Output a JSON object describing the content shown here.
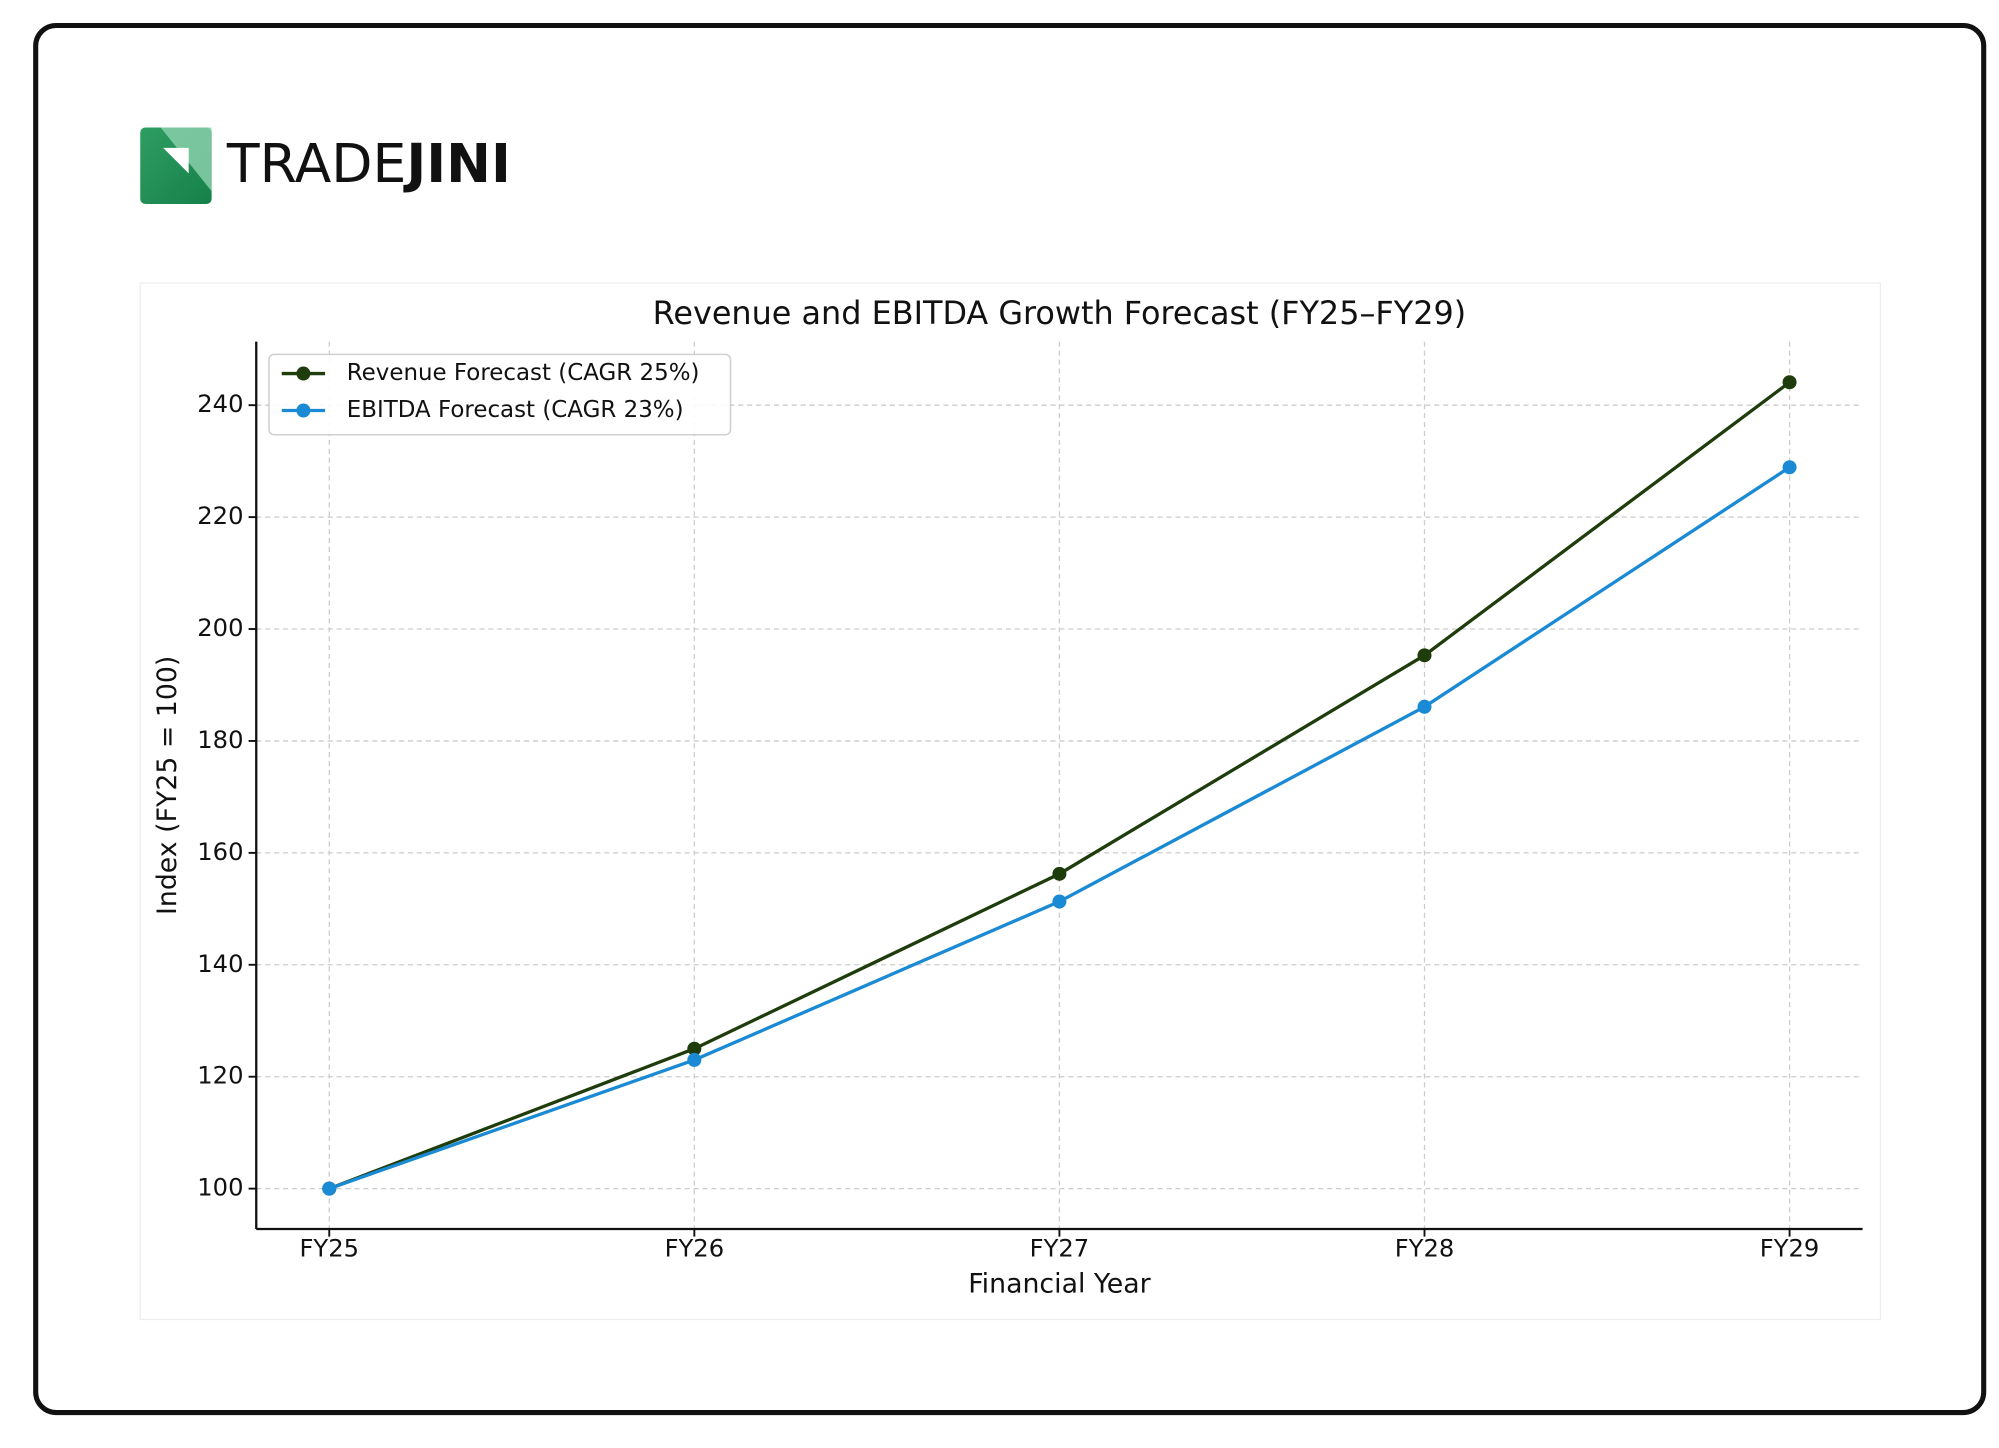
{
  "brand": {
    "name_light": "TRADE",
    "name_bold": "JINI"
  },
  "chart_data": {
    "type": "line",
    "title": "Revenue and EBITDA Growth Forecast (FY25–FY29)",
    "x_label": "Financial Year",
    "y_label": "Index (FY25 = 100)",
    "categories": [
      "FY25",
      "FY26",
      "FY27",
      "FY28",
      "FY29"
    ],
    "series": [
      {
        "name": "Revenue Forecast (CAGR 25%)",
        "color": "#1f3d0c",
        "values": [
          100,
          125,
          156.25,
          195.3,
          244.1
        ]
      },
      {
        "name": "EBITDA Forecast (CAGR 23%)",
        "color": "#1a8ad4",
        "values": [
          100,
          123,
          151.3,
          186.1,
          228.9
        ]
      }
    ],
    "ylim": [
      92.79,
      251.35
    ],
    "yticks": [
      100,
      120,
      140,
      160,
      180,
      200,
      220,
      240
    ],
    "grid": true,
    "legend": "upper-left"
  }
}
